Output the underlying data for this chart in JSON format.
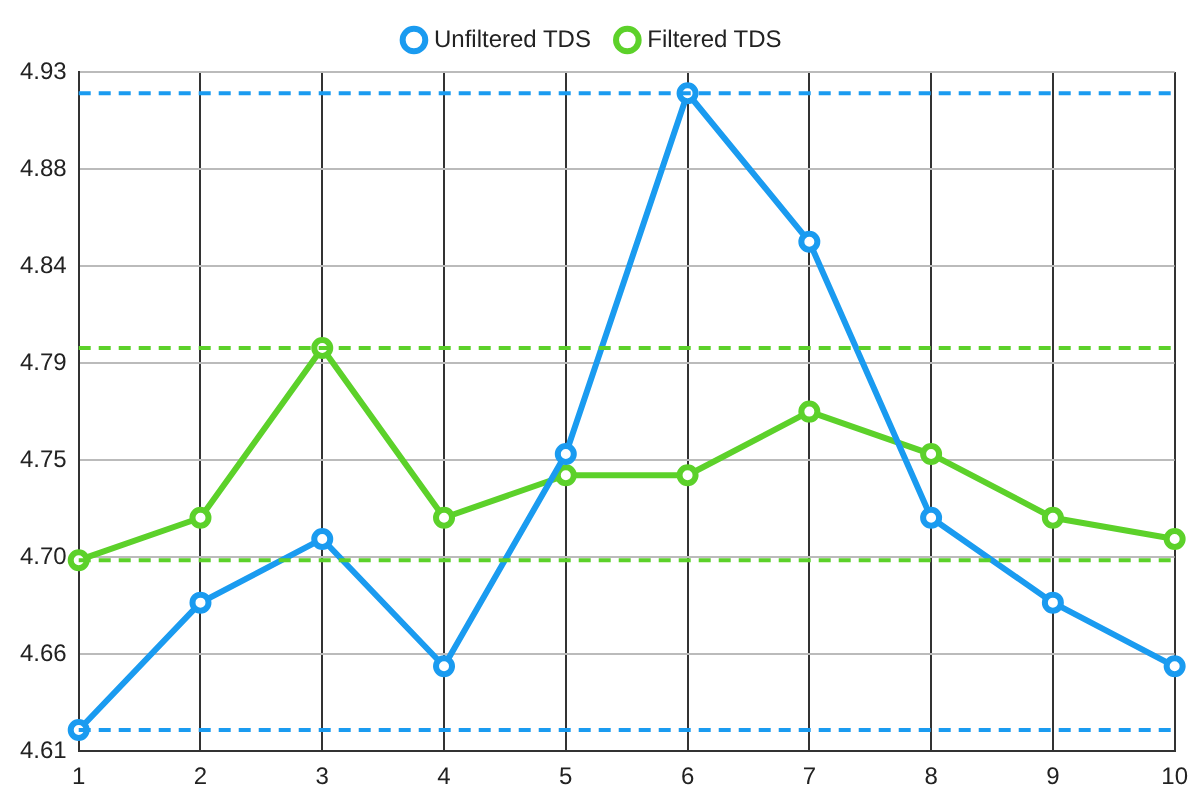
{
  "chart_data": {
    "type": "line",
    "categories": [
      "1",
      "2",
      "3",
      "4",
      "5",
      "6",
      "7",
      "8",
      "9",
      "10"
    ],
    "series": [
      {
        "name": "Unfiltered TDS",
        "color": "#1a9bf0",
        "values": [
          4.62,
          4.68,
          4.71,
          4.65,
          4.75,
          4.92,
          4.85,
          4.72,
          4.68,
          4.65
        ]
      },
      {
        "name": "Filtered TDS",
        "color": "#5cd12a",
        "values": [
          4.7,
          4.72,
          4.8,
          4.72,
          4.74,
          4.74,
          4.77,
          4.75,
          4.72,
          4.71
        ]
      }
    ],
    "ylim": [
      4.61,
      4.93
    ],
    "yticks": [
      4.61,
      {
        "value": 4.6557,
        "label": "4.66"
      },
      {
        "value": 4.7014,
        "label": "4.70"
      },
      {
        "value": 4.7471,
        "label": "4.75"
      },
      {
        "value": 4.7929,
        "label": "4.79"
      },
      {
        "value": 4.8386,
        "label": "4.84"
      },
      {
        "value": 4.8843,
        "label": "4.88"
      },
      4.93
    ],
    "ref_lines": [
      {
        "axis": "y",
        "value": 4.92,
        "color": "#1a9bf0",
        "line_style": "dashed"
      },
      {
        "axis": "y",
        "value": 4.62,
        "color": "#1a9bf0",
        "line_style": "dashed"
      },
      {
        "axis": "y",
        "value": 4.8,
        "color": "#5cd12a",
        "line_style": "dashed"
      },
      {
        "axis": "y",
        "value": 4.7,
        "color": "#5cd12a",
        "line_style": "dashed"
      }
    ],
    "grid": true,
    "legend": "top",
    "marker": "circle",
    "line_style": "solid"
  }
}
